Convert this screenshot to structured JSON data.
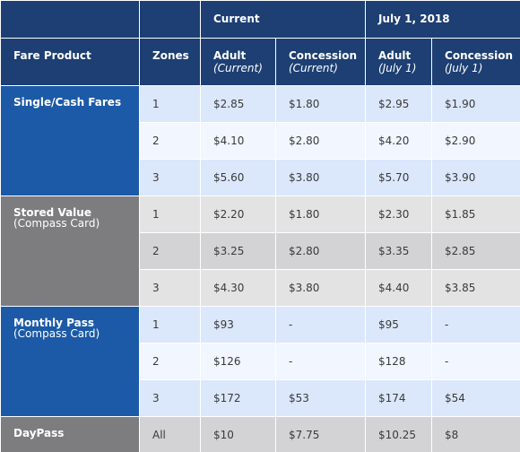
{
  "header": {
    "group_current": "Current",
    "group_july": "July 1, 2018",
    "fare_product": "Fare Product",
    "zones": "Zones",
    "columns": [
      {
        "title": "Adult",
        "sub": "(Current)"
      },
      {
        "title": "Concession",
        "sub": "(Current)"
      },
      {
        "title": "Adult",
        "sub": "(July 1)"
      },
      {
        "title": "Concession",
        "sub": "(July 1)"
      }
    ]
  },
  "products": [
    {
      "name": "Single/Cash Fares",
      "sub": "",
      "rows": [
        {
          "zone": "1",
          "values": [
            "$2.85",
            "$1.80",
            "$2.95",
            "$1.90"
          ]
        },
        {
          "zone": "2",
          "values": [
            "$4.10",
            "$2.80",
            "$4.20",
            "$2.90"
          ]
        },
        {
          "zone": "3",
          "values": [
            "$5.60",
            "$3.80",
            "$5.70",
            "$3.90"
          ]
        }
      ]
    },
    {
      "name": "Stored Value",
      "sub": "(Compass Card)",
      "rows": [
        {
          "zone": "1",
          "values": [
            "$2.20",
            "$1.80",
            "$2.30",
            "$1.85"
          ]
        },
        {
          "zone": "2",
          "values": [
            "$3.25",
            "$2.80",
            "$3.35",
            "$2.85"
          ]
        },
        {
          "zone": "3",
          "values": [
            "$4.30",
            "$3.80",
            "$4.40",
            "$3.85"
          ]
        }
      ]
    },
    {
      "name": "Monthly Pass",
      "sub": "(Compass Card)",
      "rows": [
        {
          "zone": "1",
          "values": [
            "$93",
            "-",
            "$95",
            "-"
          ]
        },
        {
          "zone": "2",
          "values": [
            "$126",
            "-",
            "$128",
            "-"
          ]
        },
        {
          "zone": "3",
          "values": [
            "$172",
            "$53",
            "$174",
            "$54"
          ]
        }
      ]
    },
    {
      "name": "DayPass",
      "sub": "",
      "rows": [
        {
          "zone": "All",
          "values": [
            "$10",
            "$7.75",
            "$10.25",
            "$8"
          ]
        }
      ]
    }
  ]
}
